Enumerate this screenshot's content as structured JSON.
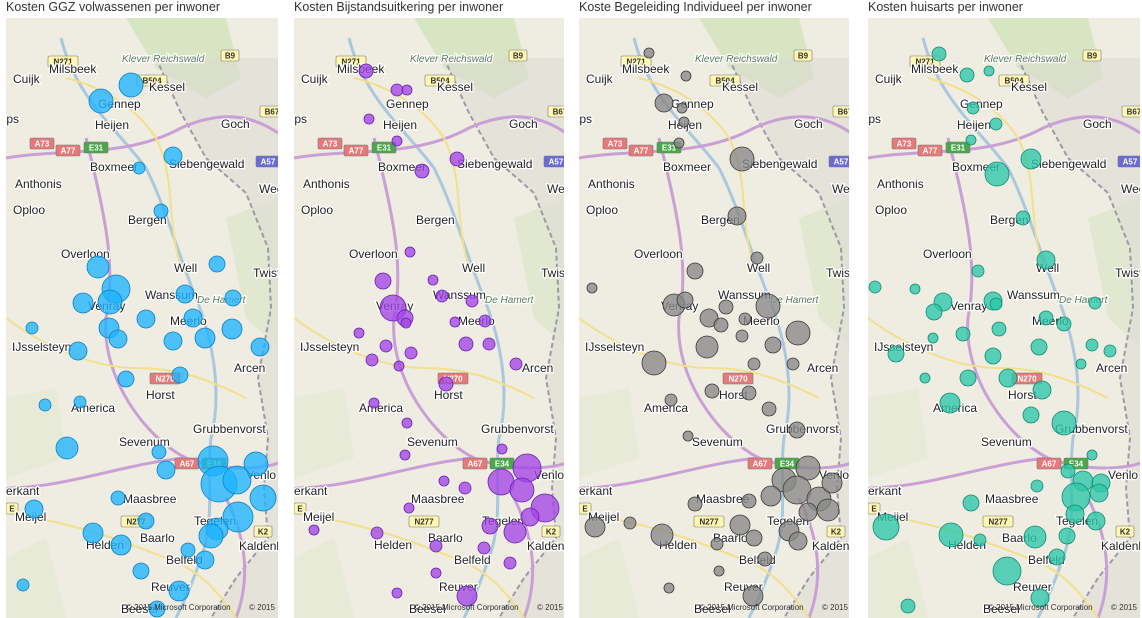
{
  "panels": [
    {
      "title": "Kosten GGZ volwassenen per inwoner",
      "color": "#1eb4ff",
      "stroke": "#0b7fc4",
      "bubbles": [
        [
          95,
          83,
          12
        ],
        [
          125,
          67,
          12
        ],
        [
          133,
          150,
          6
        ],
        [
          167,
          138,
          9
        ],
        [
          155,
          193,
          7
        ],
        [
          92,
          249,
          11
        ],
        [
          110,
          271,
          14
        ],
        [
          104,
          284,
          12
        ],
        [
          77,
          285,
          10
        ],
        [
          103,
          310,
          10
        ],
        [
          140,
          301,
          9
        ],
        [
          179,
          276,
          9
        ],
        [
          187,
          300,
          9
        ],
        [
          211,
          246,
          8
        ],
        [
          227,
          280,
          8
        ],
        [
          26,
          310,
          6
        ],
        [
          72,
          333,
          9
        ],
        [
          112,
          321,
          9
        ],
        [
          167,
          323,
          9
        ],
        [
          199,
          320,
          10
        ],
        [
          226,
          311,
          10
        ],
        [
          254,
          329,
          9
        ],
        [
          120,
          361,
          8
        ],
        [
          174,
          357,
          8
        ],
        [
          74,
          384,
          6
        ],
        [
          39,
          387,
          6
        ],
        [
          61,
          430,
          11
        ],
        [
          153,
          434,
          7
        ],
        [
          207,
          443,
          15
        ],
        [
          250,
          446,
          12
        ],
        [
          213,
          466,
          18
        ],
        [
          231,
          462,
          14
        ],
        [
          257,
          480,
          13
        ],
        [
          232,
          499,
          15
        ],
        [
          211,
          511,
          11
        ],
        [
          160,
          452,
          9
        ],
        [
          112,
          480,
          7
        ],
        [
          140,
          503,
          8
        ],
        [
          28,
          491,
          9
        ],
        [
          87,
          515,
          10
        ],
        [
          115,
          527,
          10
        ],
        [
          205,
          518,
          12
        ],
        [
          199,
          542,
          9
        ],
        [
          182,
          532,
          7
        ],
        [
          135,
          553,
          8
        ],
        [
          173,
          573,
          10
        ],
        [
          151,
          591,
          8
        ],
        [
          17,
          567,
          6
        ]
      ]
    },
    {
      "title": "Kosten Bijstandsuitkering per inwoner",
      "color": "#a345e6",
      "stroke": "#6a1fb0",
      "bubbles": [
        [
          72,
          53,
          7
        ],
        [
          103,
          72,
          6
        ],
        [
          113,
          72,
          5
        ],
        [
          75,
          101,
          5
        ],
        [
          103,
          123,
          5
        ],
        [
          163,
          141,
          7
        ],
        [
          128,
          153,
          7
        ],
        [
          116,
          234,
          5
        ],
        [
          89,
          263,
          8
        ],
        [
          99,
          290,
          13
        ],
        [
          111,
          300,
          8
        ],
        [
          139,
          262,
          5
        ],
        [
          148,
          278,
          6
        ],
        [
          178,
          283,
          6
        ],
        [
          191,
          303,
          6
        ],
        [
          161,
          304,
          5
        ],
        [
          112,
          305,
          5
        ],
        [
          65,
          315,
          5
        ],
        [
          92,
          328,
          6
        ],
        [
          117,
          335,
          6
        ],
        [
          172,
          326,
          7
        ],
        [
          195,
          326,
          6
        ],
        [
          78,
          342,
          6
        ],
        [
          105,
          348,
          5
        ],
        [
          222,
          346,
          6
        ],
        [
          152,
          366,
          7
        ],
        [
          80,
          385,
          5
        ],
        [
          113,
          405,
          5
        ],
        [
          111,
          437,
          5
        ],
        [
          208,
          431,
          5
        ],
        [
          233,
          450,
          14
        ],
        [
          207,
          464,
          13
        ],
        [
          228,
          472,
          12
        ],
        [
          251,
          490,
          14
        ],
        [
          196,
          508,
          8
        ],
        [
          221,
          514,
          11
        ],
        [
          236,
          499,
          9
        ],
        [
          171,
          470,
          6
        ],
        [
          150,
          463,
          5
        ],
        [
          115,
          490,
          5
        ],
        [
          83,
          515,
          6
        ],
        [
          20,
          512,
          5
        ],
        [
          142,
          528,
          6
        ],
        [
          190,
          530,
          6
        ],
        [
          216,
          545,
          6
        ],
        [
          142,
          555,
          5
        ],
        [
          173,
          578,
          10
        ],
        [
          103,
          575,
          5
        ]
      ]
    },
    {
      "title": "Koste Begeleiding Individueel per inwoner",
      "color": "#888888",
      "stroke": "#3a3a3a",
      "bubbles": [
        [
          70,
          35,
          5
        ],
        [
          107,
          58,
          5
        ],
        [
          85,
          85,
          9
        ],
        [
          103,
          90,
          5
        ],
        [
          105,
          104,
          5
        ],
        [
          100,
          125,
          5
        ],
        [
          163,
          141,
          12
        ],
        [
          158,
          198,
          9
        ],
        [
          116,
          253,
          8
        ],
        [
          178,
          240,
          6
        ],
        [
          13,
          270,
          5
        ],
        [
          95,
          287,
          11
        ],
        [
          106,
          282,
          8
        ],
        [
          147,
          289,
          7
        ],
        [
          189,
          288,
          12
        ],
        [
          219,
          315,
          12
        ],
        [
          130,
          300,
          9
        ],
        [
          166,
          301,
          6
        ],
        [
          142,
          307,
          7
        ],
        [
          128,
          329,
          11
        ],
        [
          163,
          318,
          6
        ],
        [
          194,
          327,
          8
        ],
        [
          175,
          346,
          6
        ],
        [
          75,
          345,
          12
        ],
        [
          214,
          346,
          6
        ],
        [
          133,
          373,
          7
        ],
        [
          170,
          375,
          7
        ],
        [
          190,
          391,
          7
        ],
        [
          92,
          382,
          6
        ],
        [
          218,
          412,
          8
        ],
        [
          109,
          418,
          5
        ],
        [
          229,
          450,
          12
        ],
        [
          205,
          462,
          12
        ],
        [
          218,
          472,
          14
        ],
        [
          192,
          478,
          10
        ],
        [
          240,
          481,
          12
        ],
        [
          253,
          465,
          10
        ],
        [
          229,
          494,
          9
        ],
        [
          249,
          492,
          11
        ],
        [
          170,
          483,
          7
        ],
        [
          116,
          486,
          7
        ],
        [
          161,
          507,
          10
        ],
        [
          210,
          513,
          10
        ],
        [
          219,
          523,
          9
        ],
        [
          83,
          517,
          11
        ],
        [
          16,
          509,
          10
        ],
        [
          51,
          505,
          6
        ],
        [
          138,
          526,
          6
        ],
        [
          175,
          520,
          8
        ],
        [
          186,
          541,
          7
        ],
        [
          140,
          553,
          5
        ],
        [
          174,
          578,
          10
        ],
        [
          90,
          570,
          5
        ]
      ]
    },
    {
      "title": "Kosten huisarts per inwoner",
      "color": "#2bc7a9",
      "stroke": "#128a70",
      "bubbles": [
        [
          71,
          36,
          7
        ],
        [
          99,
          57,
          7
        ],
        [
          121,
          53,
          5
        ],
        [
          105,
          90,
          6
        ],
        [
          128,
          106,
          6
        ],
        [
          103,
          122,
          5
        ],
        [
          163,
          141,
          10
        ],
        [
          129,
          156,
          12
        ],
        [
          155,
          200,
          7
        ],
        [
          178,
          242,
          9
        ],
        [
          110,
          253,
          6
        ],
        [
          7,
          269,
          6
        ],
        [
          47,
          271,
          5
        ],
        [
          75,
          284,
          9
        ],
        [
          125,
          283,
          9
        ],
        [
          128,
          286,
          6
        ],
        [
          66,
          294,
          8
        ],
        [
          178,
          300,
          7
        ],
        [
          196,
          306,
          7
        ],
        [
          227,
          285,
          6
        ],
        [
          65,
          320,
          5
        ],
        [
          95,
          316,
          7
        ],
        [
          131,
          311,
          7
        ],
        [
          171,
          329,
          8
        ],
        [
          224,
          327,
          6
        ],
        [
          242,
          333,
          6
        ],
        [
          28,
          336,
          8
        ],
        [
          125,
          338,
          8
        ],
        [
          213,
          346,
          5
        ],
        [
          57,
          360,
          5
        ],
        [
          100,
          360,
          8
        ],
        [
          140,
          360,
          9
        ],
        [
          174,
          372,
          9
        ],
        [
          82,
          385,
          10
        ],
        [
          163,
          397,
          8
        ],
        [
          196,
          405,
          12
        ],
        [
          224,
          437,
          5
        ],
        [
          200,
          453,
          7
        ],
        [
          215,
          463,
          10
        ],
        [
          233,
          465,
          9
        ],
        [
          208,
          479,
          14
        ],
        [
          231,
          475,
          9
        ],
        [
          207,
          496,
          9
        ],
        [
          228,
          503,
          9
        ],
        [
          169,
          468,
          6
        ],
        [
          103,
          485,
          8
        ],
        [
          18,
          509,
          13
        ],
        [
          83,
          517,
          12
        ],
        [
          112,
          522,
          6
        ],
        [
          167,
          519,
          11
        ],
        [
          199,
          518,
          8
        ],
        [
          189,
          539,
          8
        ],
        [
          139,
          553,
          14
        ],
        [
          172,
          580,
          9
        ],
        [
          40,
          588,
          7
        ]
      ]
    }
  ],
  "map": {
    "places": [
      "Milsbeek",
      "Kessel",
      "Cuijk",
      "Gennep",
      "Heijen",
      "Goch",
      "Boxmeer",
      "Siebengewald",
      "Anthonis",
      "Weeze",
      "Oploo",
      "Bergen",
      "Overloon",
      "Well",
      "Twiste",
      "Wanssum",
      "Venray",
      "Meerlo",
      "IJsselsteyn",
      "Arcen",
      "Horst",
      "America",
      "Grubbenvorst",
      "Sevenum",
      "Venlo",
      "Maasbree",
      "Meijel",
      "Tegelen",
      "Baarlo",
      "Helden",
      "Kaldenkirch",
      "Belfeld",
      "Reuver",
      "Beesel",
      "Heythuysen",
      "Kerkant",
      "Haps",
      "De Hamert",
      "Klever Reichswald",
      "Brunsse"
    ],
    "shields": [
      "N271",
      "B504",
      "B9",
      "B67",
      "A73",
      "A77",
      "E31",
      "A57",
      "A67",
      "E34",
      "N270",
      "N277",
      "K2",
      "N273",
      "E"
    ],
    "copyright": "© 2015 Microsoft Corporation",
    "copyright2": "© 2015"
  }
}
